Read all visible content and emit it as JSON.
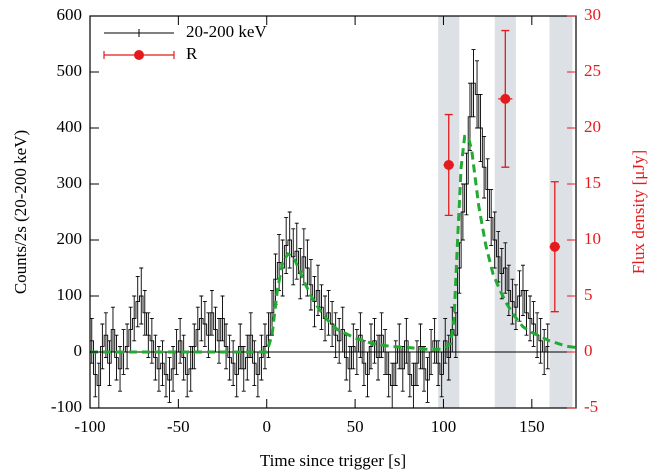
{
  "chart_data": {
    "type": "lightcurve",
    "xlabel": "Time since trigger [s]",
    "ylabel": "Counts/2s (20-200 keV)",
    "y2label": "Flux density [μJy]",
    "xlim": [
      -100,
      175
    ],
    "ylim": [
      -100,
      600
    ],
    "y2lim": [
      -5,
      30
    ],
    "xticks": [
      -100,
      -50,
      0,
      50,
      100,
      150
    ],
    "yticks": [
      -100,
      0,
      100,
      200,
      300,
      400,
      500,
      600
    ],
    "y2ticks": [
      -5,
      0,
      5,
      10,
      15,
      20,
      25,
      30
    ],
    "shaded_intervals": [
      [
        97,
        109
      ],
      [
        129,
        141
      ],
      [
        160,
        173
      ]
    ],
    "shade_color": "#dde1e6",
    "legend": "upper left",
    "series": [
      {
        "name": "20-200 keV",
        "color": "#000000",
        "axis": "y",
        "bin_width": 2,
        "x": [
          -99,
          -97,
          -95,
          -93,
          -91,
          -89,
          -87,
          -85,
          -83,
          -81,
          -79,
          -77,
          -75,
          -73,
          -71,
          -69,
          -67,
          -65,
          -63,
          -61,
          -59,
          -57,
          -55,
          -53,
          -51,
          -49,
          -47,
          -45,
          -43,
          -41,
          -39,
          -37,
          -35,
          -33,
          -31,
          -29,
          -27,
          -25,
          -23,
          -21,
          -19,
          -17,
          -15,
          -13,
          -11,
          -9,
          -7,
          -5,
          -3,
          -1,
          1,
          3,
          5,
          7,
          9,
          11,
          13,
          15,
          17,
          19,
          21,
          23,
          25,
          27,
          29,
          31,
          33,
          35,
          37,
          39,
          41,
          43,
          45,
          47,
          49,
          51,
          53,
          55,
          57,
          59,
          61,
          63,
          65,
          67,
          69,
          71,
          73,
          75,
          77,
          79,
          81,
          83,
          85,
          87,
          89,
          91,
          93,
          95,
          97,
          99,
          101,
          103,
          105,
          107,
          109,
          111,
          113,
          115,
          117,
          119,
          121,
          123,
          125,
          127,
          129,
          131,
          133,
          135,
          137,
          139,
          141,
          143,
          145,
          147,
          149,
          151,
          153,
          155,
          157,
          159
        ],
        "values": [
          20,
          -40,
          -60,
          10,
          30,
          -20,
          40,
          -10,
          -30,
          0,
          10,
          40,
          60,
          90,
          100,
          70,
          30,
          20,
          -10,
          -30,
          -20,
          -40,
          -50,
          -30,
          0,
          20,
          -10,
          -40,
          -30,
          10,
          40,
          60,
          50,
          30,
          70,
          40,
          20,
          60,
          10,
          -10,
          -20,
          -40,
          10,
          -30,
          -10,
          30,
          -20,
          -40,
          -10,
          10,
          30,
          70,
          130,
          160,
          150,
          190,
          200,
          170,
          180,
          140,
          170,
          150,
          120,
          90,
          110,
          80,
          60,
          70,
          50,
          30,
          20,
          40,
          -10,
          -30,
          10,
          0,
          30,
          -20,
          -40,
          10,
          20,
          -10,
          30,
          0,
          -40,
          -60,
          -20,
          10,
          -30,
          20,
          -40,
          -60,
          -20,
          10,
          -30,
          -50,
          0,
          20,
          -20,
          -40,
          20,
          -10,
          40,
          30,
          150,
          250,
          300,
          420,
          480,
          460,
          400,
          330,
          290,
          240,
          200,
          170,
          140,
          150,
          110,
          90,
          80,
          100,
          110,
          70,
          60,
          50,
          30,
          20,
          0,
          10
        ],
        "errors": [
          40,
          40,
          40,
          40,
          40,
          40,
          40,
          40,
          40,
          40,
          40,
          40,
          40,
          45,
          50,
          40,
          40,
          40,
          40,
          40,
          40,
          40,
          40,
          40,
          40,
          40,
          40,
          40,
          40,
          40,
          40,
          40,
          40,
          40,
          40,
          40,
          40,
          40,
          40,
          40,
          40,
          40,
          40,
          40,
          40,
          40,
          40,
          40,
          40,
          40,
          40,
          40,
          45,
          50,
          50,
          50,
          50,
          50,
          50,
          45,
          50,
          50,
          45,
          45,
          45,
          40,
          40,
          40,
          40,
          40,
          40,
          40,
          40,
          40,
          40,
          40,
          40,
          40,
          40,
          40,
          40,
          40,
          40,
          40,
          40,
          40,
          40,
          40,
          40,
          40,
          40,
          40,
          40,
          40,
          40,
          40,
          40,
          40,
          40,
          40,
          40,
          40,
          40,
          40,
          45,
          50,
          55,
          60,
          60,
          60,
          60,
          55,
          55,
          50,
          50,
          45,
          45,
          45,
          45,
          40,
          40,
          45,
          45,
          40,
          40,
          40,
          40,
          40,
          40,
          40
        ]
      },
      {
        "name": "R",
        "color": "#e41a1c",
        "axis": "y2",
        "x": [
          103,
          135,
          163
        ],
        "values": [
          16.7,
          22.6,
          9.4
        ],
        "xerr": [
          3,
          4,
          3
        ],
        "yerr": [
          4.5,
          6.1,
          5.8
        ]
      }
    ],
    "fit": {
      "color": "#22aa33",
      "x": [
        -100,
        0,
        3,
        6,
        9,
        12,
        15,
        18,
        22,
        26,
        30,
        35,
        40,
        50,
        60,
        70,
        80,
        90,
        100,
        104,
        106,
        108,
        110,
        112,
        114,
        116,
        118,
        120,
        124,
        128,
        132,
        136,
        140,
        145,
        150,
        160,
        170,
        175
      ],
      "values": [
        0,
        0,
        30,
        110,
        160,
        175,
        170,
        150,
        120,
        95,
        75,
        55,
        40,
        25,
        15,
        10,
        8,
        5,
        5,
        15,
        60,
        200,
        330,
        385,
        385,
        360,
        310,
        260,
        190,
        140,
        110,
        85,
        65,
        45,
        35,
        20,
        10,
        8
      ]
    }
  }
}
